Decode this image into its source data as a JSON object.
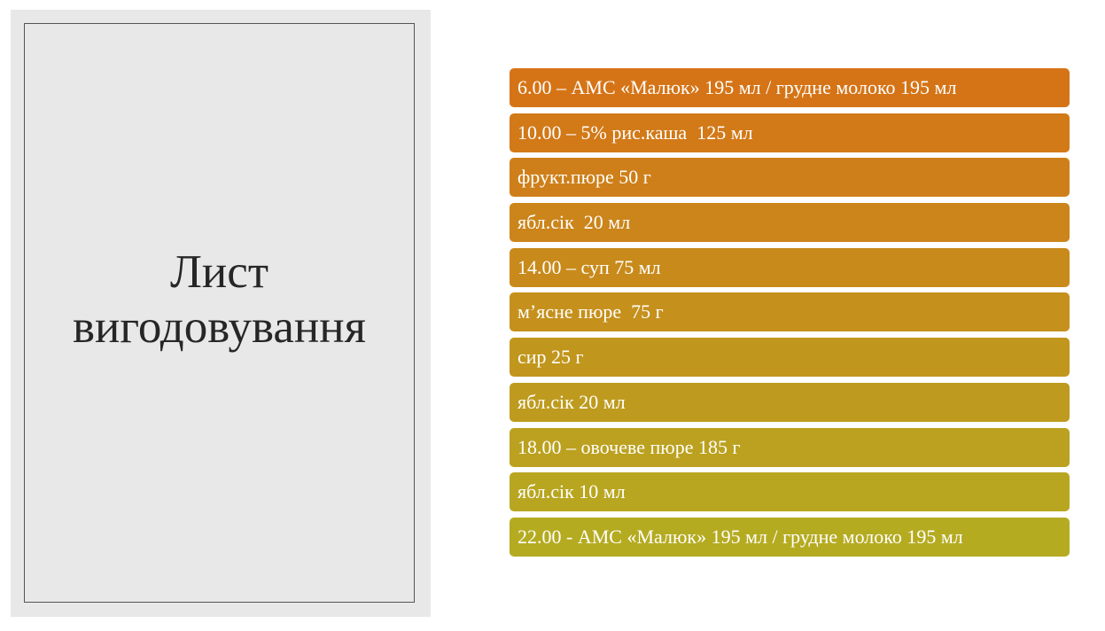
{
  "title": {
    "line1": "Лист",
    "line2": "вигодовування"
  },
  "items": [
    {
      "text": "6.00 – АМС «Малюк» 195 мл / грудне молоко 195 мл",
      "color": "#d57417"
    },
    {
      "text": "10.00 – 5% рис.каша  125 мл",
      "color": "#d27918"
    },
    {
      "text": "фрукт.пюре 50 г",
      "color": "#ce7f19"
    },
    {
      "text": "ябл.сік  20 мл",
      "color": "#cb851a"
    },
    {
      "text": "14.00 – суп 75 мл",
      "color": "#c88a1b"
    },
    {
      "text": "м’ясне пюре  75 г",
      "color": "#c5901c"
    },
    {
      "text": "сир 25 г",
      "color": "#c1961d"
    },
    {
      "text": "ябл.сік 20 мл",
      "color": "#be9b1e"
    },
    {
      "text": "18.00 – овочеве пюре 185 г",
      "color": "#bba11f"
    },
    {
      "text": "ябл.сік 10 мл",
      "color": "#b8a620"
    },
    {
      "text": "22.00 - АМС «Малюк» 195 мл / грудне молоко 195 мл",
      "color": "#b5ab21"
    }
  ]
}
